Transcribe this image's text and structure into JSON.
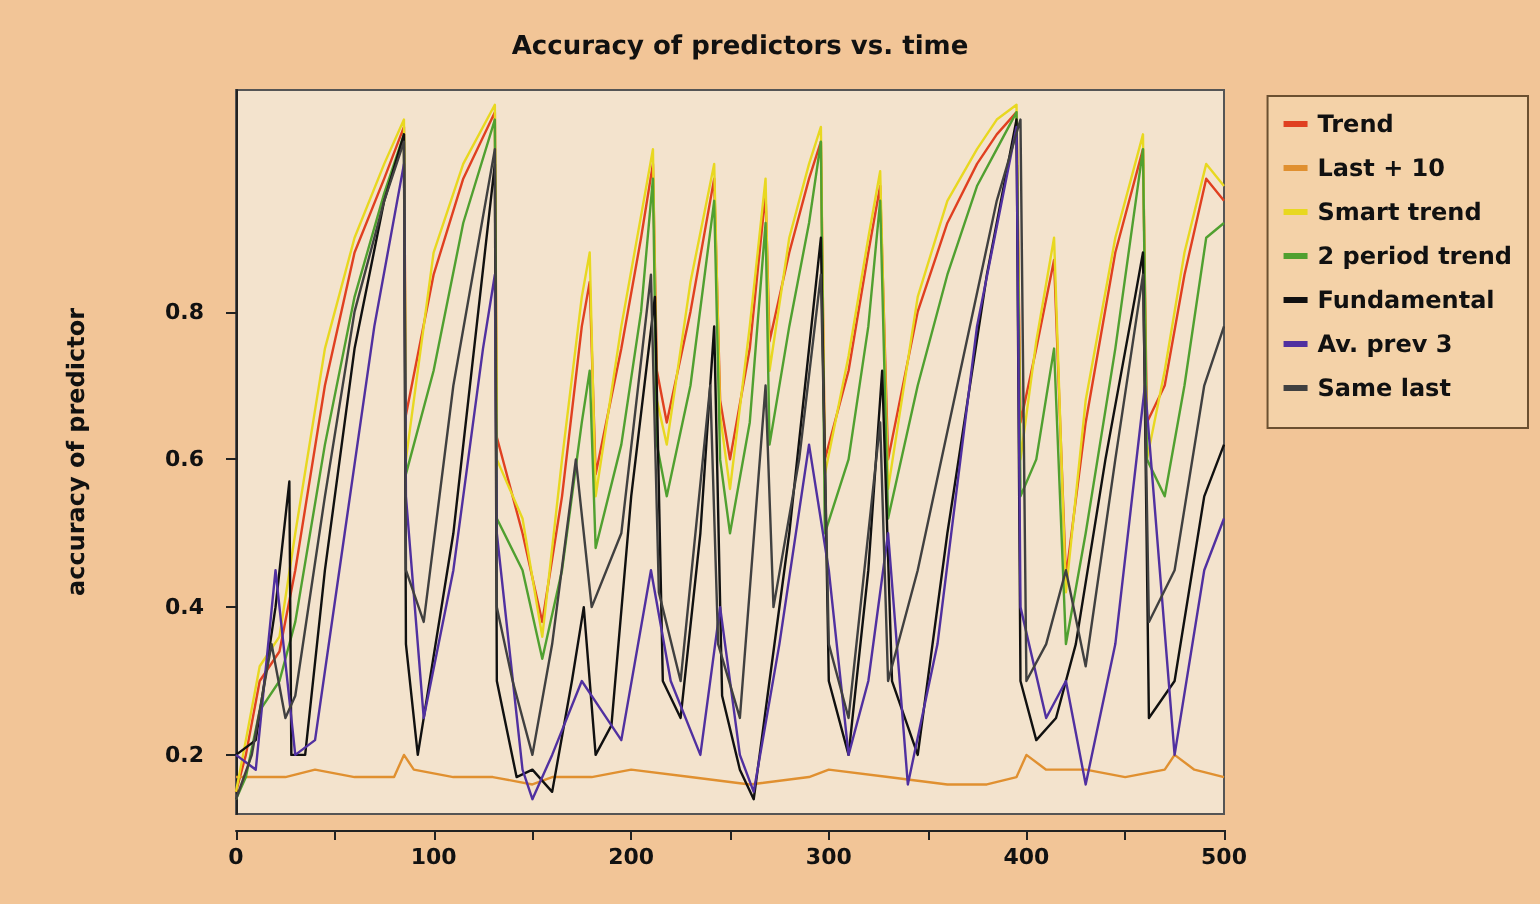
{
  "chart_data": {
    "type": "line",
    "title": "Accuracy of predictors vs. time",
    "ylabel": "accuracy of predictor",
    "xlim": [
      0,
      500
    ],
    "xticks": [
      0,
      {
        "value": 50,
        "label": null
      },
      100,
      {
        "value": 150,
        "label": null
      },
      200,
      {
        "value": 250,
        "label": null
      },
      300,
      {
        "value": 350,
        "label": null
      },
      400,
      {
        "value": 450,
        "label": null
      },
      500
    ],
    "ylim": [
      0.12,
      1.1
    ],
    "yticks": [
      0.2,
      0.4,
      0.6,
      0.8
    ],
    "grid": false,
    "legend": "right",
    "marker": "none",
    "line_style": "solid",
    "series": [
      {
        "name": "Trend",
        "color": "#e04020",
        "x": [
          0,
          5,
          12,
          22,
          30,
          45,
          60,
          75,
          85,
          86,
          100,
          115,
          131,
          132,
          145,
          155,
          165,
          175,
          179,
          182,
          195,
          205,
          211,
          213,
          218,
          230,
          242,
          245,
          250,
          260,
          268,
          270,
          280,
          290,
          296,
          298,
          310,
          320,
          326,
          330,
          345,
          360,
          375,
          385,
          395,
          397,
          405,
          414,
          420,
          430,
          445,
          459,
          461,
          470,
          480,
          491,
          500
        ],
        "values": [
          0.15,
          0.2,
          0.3,
          0.34,
          0.45,
          0.7,
          0.88,
          0.98,
          1.05,
          0.66,
          0.85,
          0.98,
          1.07,
          0.63,
          0.5,
          0.38,
          0.55,
          0.78,
          0.84,
          0.58,
          0.75,
          0.9,
          1.0,
          0.72,
          0.65,
          0.8,
          0.98,
          0.68,
          0.6,
          0.75,
          0.96,
          0.76,
          0.88,
          0.98,
          1.03,
          0.6,
          0.72,
          0.88,
          0.97,
          0.6,
          0.8,
          0.92,
          1.0,
          1.04,
          1.07,
          0.65,
          0.75,
          0.87,
          0.44,
          0.65,
          0.88,
          1.02,
          0.65,
          0.7,
          0.85,
          0.98,
          0.95
        ]
      },
      {
        "name": "Last + 10",
        "color": "#e09030",
        "x": [
          0,
          25,
          40,
          60,
          80,
          85,
          90,
          110,
          130,
          150,
          160,
          180,
          200,
          230,
          260,
          290,
          300,
          330,
          360,
          380,
          395,
          400,
          410,
          430,
          450,
          470,
          475,
          485,
          500
        ],
        "values": [
          0.17,
          0.17,
          0.18,
          0.17,
          0.17,
          0.2,
          0.18,
          0.17,
          0.17,
          0.16,
          0.17,
          0.17,
          0.18,
          0.17,
          0.16,
          0.17,
          0.18,
          0.17,
          0.16,
          0.16,
          0.17,
          0.2,
          0.18,
          0.18,
          0.17,
          0.18,
          0.2,
          0.18,
          0.17
        ]
      },
      {
        "name": "Smart trend",
        "color": "#e8d820",
        "x": [
          0,
          5,
          12,
          22,
          30,
          45,
          60,
          75,
          85,
          86,
          100,
          115,
          131,
          132,
          145,
          155,
          165,
          175,
          179,
          182,
          195,
          205,
          211,
          213,
          218,
          230,
          242,
          245,
          250,
          260,
          268,
          270,
          280,
          290,
          296,
          298,
          310,
          320,
          326,
          330,
          345,
          360,
          375,
          385,
          395,
          397,
          405,
          414,
          420,
          430,
          445,
          459,
          461,
          470,
          480,
          491,
          500
        ],
        "values": [
          0.15,
          0.22,
          0.32,
          0.36,
          0.5,
          0.75,
          0.9,
          1.0,
          1.06,
          0.6,
          0.88,
          1.0,
          1.08,
          0.6,
          0.52,
          0.36,
          0.6,
          0.82,
          0.88,
          0.55,
          0.78,
          0.93,
          1.02,
          0.68,
          0.62,
          0.84,
          1.0,
          0.66,
          0.56,
          0.78,
          0.98,
          0.72,
          0.9,
          1.0,
          1.05,
          0.58,
          0.74,
          0.9,
          0.99,
          0.56,
          0.82,
          0.95,
          1.02,
          1.06,
          1.08,
          0.6,
          0.76,
          0.9,
          0.42,
          0.68,
          0.9,
          1.04,
          0.6,
          0.72,
          0.88,
          1.0,
          0.97
        ]
      },
      {
        "name": "2 period trend",
        "color": "#50a030",
        "x": [
          0,
          5,
          12,
          22,
          30,
          45,
          60,
          75,
          85,
          86,
          100,
          115,
          131,
          132,
          145,
          155,
          165,
          175,
          179,
          182,
          195,
          205,
          211,
          213,
          218,
          230,
          242,
          245,
          250,
          260,
          268,
          270,
          280,
          290,
          296,
          298,
          310,
          320,
          326,
          330,
          345,
          360,
          375,
          385,
          395,
          397,
          405,
          414,
          420,
          430,
          445,
          459,
          461,
          470,
          480,
          491,
          500
        ],
        "values": [
          0.14,
          0.17,
          0.26,
          0.3,
          0.38,
          0.62,
          0.82,
          0.96,
          1.04,
          0.58,
          0.72,
          0.92,
          1.06,
          0.52,
          0.45,
          0.33,
          0.45,
          0.65,
          0.72,
          0.48,
          0.62,
          0.8,
          0.98,
          0.62,
          0.55,
          0.7,
          0.95,
          0.6,
          0.5,
          0.65,
          0.92,
          0.62,
          0.78,
          0.92,
          1.03,
          0.5,
          0.6,
          0.78,
          0.95,
          0.52,
          0.7,
          0.85,
          0.97,
          1.02,
          1.07,
          0.55,
          0.6,
          0.75,
          0.35,
          0.5,
          0.75,
          1.02,
          0.6,
          0.55,
          0.7,
          0.9,
          0.92
        ]
      },
      {
        "name": "Fundamental",
        "color": "#101010",
        "x": [
          0,
          10,
          20,
          27,
          28,
          35,
          45,
          60,
          75,
          85,
          86,
          92,
          110,
          131,
          132,
          142,
          150,
          160,
          170,
          176,
          182,
          190,
          200,
          212,
          216,
          225,
          235,
          242,
          246,
          255,
          262,
          270,
          280,
          290,
          296,
          300,
          310,
          320,
          327,
          332,
          345,
          360,
          380,
          395,
          397,
          405,
          415,
          425,
          440,
          455,
          459,
          462,
          475,
          490,
          500
        ],
        "values": [
          0.2,
          0.22,
          0.4,
          0.57,
          0.2,
          0.2,
          0.45,
          0.75,
          0.95,
          1.04,
          0.35,
          0.2,
          0.5,
          1.0,
          0.3,
          0.17,
          0.18,
          0.15,
          0.3,
          0.4,
          0.2,
          0.24,
          0.55,
          0.82,
          0.3,
          0.25,
          0.5,
          0.78,
          0.28,
          0.18,
          0.14,
          0.3,
          0.5,
          0.75,
          0.9,
          0.3,
          0.2,
          0.45,
          0.72,
          0.3,
          0.2,
          0.5,
          0.85,
          1.06,
          0.3,
          0.22,
          0.25,
          0.35,
          0.6,
          0.82,
          0.88,
          0.25,
          0.3,
          0.55,
          0.62
        ]
      },
      {
        "name": "Av. prev 3",
        "color": "#5030a0",
        "x": [
          0,
          10,
          20,
          30,
          40,
          55,
          70,
          85,
          86,
          95,
          110,
          125,
          131,
          132,
          145,
          150,
          160,
          175,
          185,
          195,
          210,
          220,
          235,
          245,
          255,
          262,
          275,
          290,
          300,
          310,
          320,
          330,
          340,
          355,
          375,
          395,
          397,
          410,
          420,
          430,
          445,
          460,
          475,
          490,
          500
        ],
        "values": [
          0.2,
          0.18,
          0.45,
          0.2,
          0.22,
          0.5,
          0.78,
          1.0,
          0.55,
          0.25,
          0.45,
          0.75,
          0.85,
          0.5,
          0.18,
          0.14,
          0.2,
          0.3,
          0.26,
          0.22,
          0.45,
          0.3,
          0.2,
          0.4,
          0.2,
          0.15,
          0.35,
          0.62,
          0.45,
          0.2,
          0.3,
          0.5,
          0.16,
          0.35,
          0.78,
          1.05,
          0.4,
          0.25,
          0.3,
          0.16,
          0.35,
          0.7,
          0.2,
          0.45,
          0.52
        ]
      },
      {
        "name": "Same last",
        "color": "#404040",
        "x": [
          0,
          8,
          18,
          25,
          30,
          45,
          60,
          75,
          85,
          86,
          95,
          110,
          131,
          132,
          140,
          150,
          160,
          172,
          180,
          195,
          210,
          214,
          225,
          240,
          244,
          255,
          268,
          272,
          285,
          296,
          300,
          310,
          326,
          330,
          345,
          365,
          385,
          397,
          400,
          410,
          420,
          430,
          445,
          459,
          462,
          475,
          490,
          500
        ],
        "values": [
          0.14,
          0.2,
          0.35,
          0.25,
          0.28,
          0.55,
          0.8,
          0.95,
          1.03,
          0.45,
          0.38,
          0.7,
          1.02,
          0.4,
          0.3,
          0.2,
          0.35,
          0.6,
          0.4,
          0.5,
          0.85,
          0.42,
          0.3,
          0.7,
          0.35,
          0.25,
          0.7,
          0.4,
          0.6,
          0.85,
          0.35,
          0.25,
          0.65,
          0.3,
          0.45,
          0.7,
          0.95,
          1.06,
          0.3,
          0.35,
          0.45,
          0.32,
          0.6,
          0.85,
          0.38,
          0.45,
          0.7,
          0.78
        ]
      }
    ]
  }
}
